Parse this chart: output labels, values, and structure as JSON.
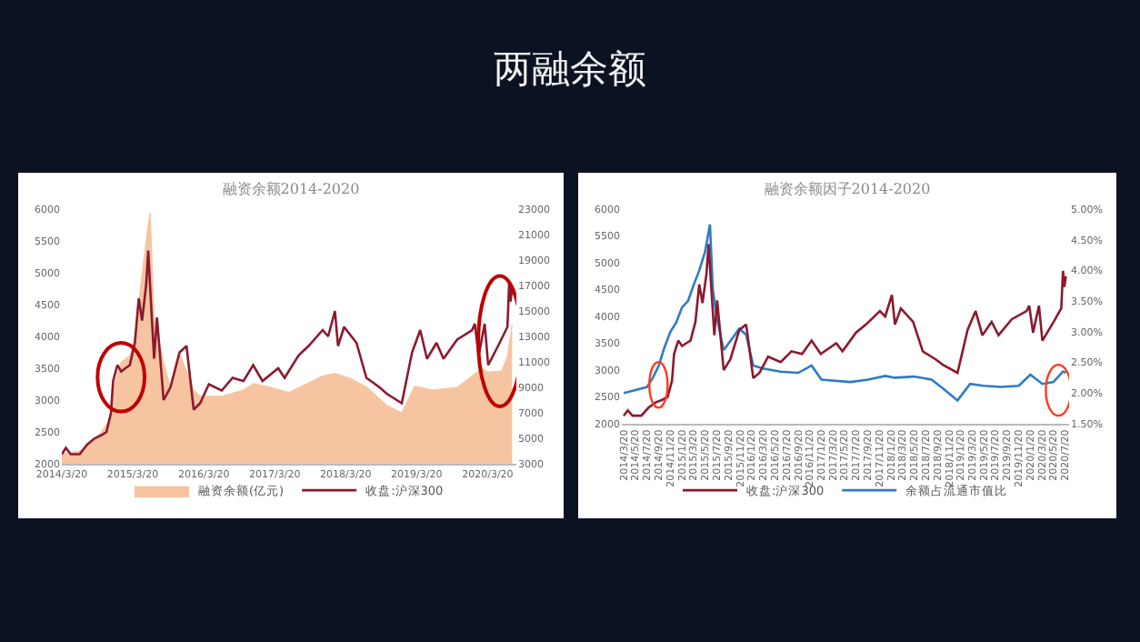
{
  "chart_data": [
    {
      "type": "other",
      "title": "两融余额"
    },
    {
      "type": "line",
      "title": "融资余额2014-2020",
      "xlim": [
        "2014-03-20",
        "2020-08-15"
      ],
      "xticks": [
        {
          "value": "2014-03-20",
          "label": "2014/3/20"
        },
        {
          "value": "2015-03-20",
          "label": "2015/3/20"
        },
        {
          "value": "2016-03-20",
          "label": "2016/3/20"
        },
        {
          "value": "2017-03-20",
          "label": "2017/3/20"
        },
        {
          "value": "2018-03-20",
          "label": "2018/3/20"
        },
        {
          "value": "2019-03-20",
          "label": "2019/3/20"
        },
        {
          "value": "2020-03-20",
          "label": "2020/3/20"
        }
      ],
      "ylim": [
        2000,
        6000
      ],
      "yticks": [
        2000,
        2500,
        3000,
        3500,
        4000,
        4500,
        5000,
        5500,
        6000
      ],
      "y2lim": [
        3000,
        23000
      ],
      "y2ticks": [
        3000,
        5000,
        7000,
        9000,
        11000,
        13000,
        15000,
        17000,
        19000,
        21000,
        23000
      ],
      "legend": "bottom",
      "series": [
        {
          "name": "融资余额(亿元)",
          "type": "area",
          "axis": "y2",
          "color": "#f6c4a0",
          "x": [
            "2014-03-20",
            "2014-06-20",
            "2014-08-15",
            "2014-10-10",
            "2014-11-20",
            "2014-12-20",
            "2015-01-20",
            "2015-03-05",
            "2015-04-01",
            "2015-04-30",
            "2015-06-05",
            "2015-06-18",
            "2015-07-08",
            "2015-08-26",
            "2015-09-30",
            "2015-11-16",
            "2016-01-28",
            "2016-03-01",
            "2016-06-20",
            "2016-10-10",
            "2016-12-01",
            "2017-03-01",
            "2017-06-01",
            "2017-09-01",
            "2017-11-22",
            "2018-01-24",
            "2018-04-16",
            "2018-07-10",
            "2018-10-18",
            "2019-01-03",
            "2019-03-10",
            "2019-06-10",
            "2019-10-15",
            "2019-12-31",
            "2020-02-21",
            "2020-03-23",
            "2020-06-01",
            "2020-07-01",
            "2020-07-24"
          ],
          "values": [
            3800,
            4000,
            4600,
            5500,
            6500,
            9500,
            11000,
            11500,
            13000,
            17000,
            21500,
            22700,
            14500,
            11000,
            9000,
            11700,
            8800,
            8300,
            8300,
            8800,
            9300,
            9000,
            8600,
            9300,
            9900,
            10100,
            9700,
            9000,
            7600,
            7000,
            9100,
            8800,
            9000,
            9900,
            10500,
            10200,
            10300,
            11500,
            14000
          ]
        },
        {
          "name": "收盘:沪深300",
          "type": "line",
          "color": "#8b1a2e",
          "x": [
            "2014-03-20",
            "2014-04-10",
            "2014-05-05",
            "2014-06-20",
            "2014-07-28",
            "2014-09-05",
            "2014-10-10",
            "2014-11-05",
            "2014-11-28",
            "2014-12-09",
            "2014-12-31",
            "2015-01-20",
            "2015-02-10",
            "2015-03-05",
            "2015-03-31",
            "2015-04-20",
            "2015-05-07",
            "2015-05-28",
            "2015-06-08",
            "2015-06-19",
            "2015-07-08",
            "2015-07-23",
            "2015-08-26",
            "2015-09-30",
            "2015-11-16",
            "2015-12-22",
            "2016-01-28",
            "2016-03-01",
            "2016-04-15",
            "2016-06-20",
            "2016-08-15",
            "2016-10-10",
            "2016-11-29",
            "2017-01-16",
            "2017-04-07",
            "2017-05-10",
            "2017-07-20",
            "2017-09-10",
            "2017-11-22",
            "2017-12-20",
            "2018-01-24",
            "2018-02-09",
            "2018-03-12",
            "2018-05-15",
            "2018-07-05",
            "2018-09-11",
            "2018-10-18",
            "2019-01-03",
            "2019-02-25",
            "2019-04-08",
            "2019-05-13",
            "2019-07-01",
            "2019-08-06",
            "2019-10-15",
            "2019-12-31",
            "2020-01-14",
            "2020-02-03",
            "2020-03-05",
            "2020-03-23",
            "2020-05-21",
            "2020-06-30",
            "2020-07-09",
            "2020-07-16",
            "2020-07-24"
          ],
          "values": [
            2150,
            2250,
            2150,
            2150,
            2300,
            2400,
            2450,
            2500,
            2800,
            3300,
            3550,
            3450,
            3500,
            3550,
            3900,
            4600,
            4250,
            4800,
            5350,
            4700,
            3650,
            4300,
            3000,
            3200,
            3750,
            3850,
            2850,
            2950,
            3250,
            3150,
            3350,
            3300,
            3550,
            3300,
            3500,
            3350,
            3700,
            3850,
            4100,
            4000,
            4400,
            3850,
            4150,
            3900,
            3350,
            3200,
            3100,
            2950,
            3750,
            4100,
            3650,
            3900,
            3650,
            3950,
            4100,
            4200,
            3700,
            4200,
            3550,
            3900,
            4150,
            4850,
            4550,
            4750
          ]
        }
      ]
    },
    {
      "type": "line",
      "title": "融资余额因子2014-2020",
      "xlim": [
        "2014-03-10",
        "2020-08-10"
      ],
      "xticks": [
        {
          "value": "2014-03-20",
          "label": "2014/3/20"
        },
        {
          "value": "2014-05-20",
          "label": "2014/5/20"
        },
        {
          "value": "2014-07-20",
          "label": "2014/7/20"
        },
        {
          "value": "2014-09-20",
          "label": "2014/9/20"
        },
        {
          "value": "2014-11-20",
          "label": "2014/11/20"
        },
        {
          "value": "2015-01-20",
          "label": "2015/1/20"
        },
        {
          "value": "2015-03-20",
          "label": "2015/3/20"
        },
        {
          "value": "2015-05-20",
          "label": "2015/5/20"
        },
        {
          "value": "2015-07-20",
          "label": "2015/7/20"
        },
        {
          "value": "2015-09-20",
          "label": "2015/9/20"
        },
        {
          "value": "2015-11-20",
          "label": "2015/11/20"
        },
        {
          "value": "2016-01-20",
          "label": "2016/1/20"
        },
        {
          "value": "2016-03-20",
          "label": "2016/3/20"
        },
        {
          "value": "2016-05-20",
          "label": "2016/5/20"
        },
        {
          "value": "2016-07-20",
          "label": "2016/7/20"
        },
        {
          "value": "2016-09-20",
          "label": "2016/9/20"
        },
        {
          "value": "2016-11-20",
          "label": "2016/11/20"
        },
        {
          "value": "2017-01-20",
          "label": "2017/1/20"
        },
        {
          "value": "2017-03-20",
          "label": "2017/3/20"
        },
        {
          "value": "2017-05-20",
          "label": "2017/5/20"
        },
        {
          "value": "2017-07-20",
          "label": "2017/7/20"
        },
        {
          "value": "2017-09-20",
          "label": "2017/9/20"
        },
        {
          "value": "2017-11-20",
          "label": "2017/11/20"
        },
        {
          "value": "2018-01-20",
          "label": "2018/1/20"
        },
        {
          "value": "2018-03-20",
          "label": "2018/3/20"
        },
        {
          "value": "2018-05-20",
          "label": "2018/5/20"
        },
        {
          "value": "2018-07-20",
          "label": "2018/7/20"
        },
        {
          "value": "2018-09-20",
          "label": "2018/9/20"
        },
        {
          "value": "2018-11-20",
          "label": "2018/11/20"
        },
        {
          "value": "2019-01-20",
          "label": "2019/1/20"
        },
        {
          "value": "2019-03-20",
          "label": "2019/3/20"
        },
        {
          "value": "2019-05-20",
          "label": "2019/5/20"
        },
        {
          "value": "2019-07-20",
          "label": "2019/7/20"
        },
        {
          "value": "2019-09-20",
          "label": "2019/9/20"
        },
        {
          "value": "2019-11-20",
          "label": "2019/11/20"
        },
        {
          "value": "2020-01-20",
          "label": "2020/1/20"
        },
        {
          "value": "2020-03-20",
          "label": "2020/3/20"
        },
        {
          "value": "2020-05-20",
          "label": "2020/5/20"
        },
        {
          "value": "2020-07-20",
          "label": "2020/7/20"
        }
      ],
      "ylim": [
        2000,
        6000
      ],
      "yticks": [
        2000,
        2500,
        3000,
        3500,
        4000,
        4500,
        5000,
        5500,
        6000
      ],
      "y2lim": [
        1.5,
        5
      ],
      "y2ticks": [
        {
          "value": 1.5,
          "label": "1.50%"
        },
        {
          "value": 2,
          "label": "2.00%"
        },
        {
          "value": 2.5,
          "label": "2.50%"
        },
        {
          "value": 3,
          "label": "3.00%"
        },
        {
          "value": 3.5,
          "label": "3.50%"
        },
        {
          "value": 4,
          "label": "4.00%"
        },
        {
          "value": 4.5,
          "label": "4.50%"
        },
        {
          "value": 5,
          "label": "5.00%"
        }
      ],
      "legend": "bottom",
      "series": [
        {
          "name": "收盘:沪深300",
          "type": "line",
          "color": "#8b1a2e",
          "x": [
            "2014-03-20",
            "2014-04-10",
            "2014-05-05",
            "2014-06-20",
            "2014-07-28",
            "2014-09-05",
            "2014-10-10",
            "2014-11-05",
            "2014-11-28",
            "2014-12-09",
            "2014-12-31",
            "2015-01-20",
            "2015-02-10",
            "2015-03-05",
            "2015-03-31",
            "2015-04-20",
            "2015-05-07",
            "2015-05-28",
            "2015-06-08",
            "2015-06-19",
            "2015-07-08",
            "2015-07-23",
            "2015-08-26",
            "2015-09-30",
            "2015-11-16",
            "2015-12-22",
            "2016-01-28",
            "2016-03-01",
            "2016-04-15",
            "2016-06-20",
            "2016-08-15",
            "2016-10-10",
            "2016-11-29",
            "2017-01-16",
            "2017-04-07",
            "2017-05-10",
            "2017-07-20",
            "2017-09-10",
            "2017-11-22",
            "2017-12-20",
            "2018-01-24",
            "2018-02-09",
            "2018-03-12",
            "2018-05-15",
            "2018-07-05",
            "2018-09-11",
            "2018-10-18",
            "2019-01-03",
            "2019-02-25",
            "2019-04-08",
            "2019-05-13",
            "2019-07-01",
            "2019-08-06",
            "2019-10-15",
            "2019-12-31",
            "2020-01-14",
            "2020-02-03",
            "2020-03-05",
            "2020-03-23",
            "2020-05-21",
            "2020-06-30",
            "2020-07-09",
            "2020-07-16",
            "2020-07-24"
          ],
          "values": [
            2150,
            2250,
            2150,
            2150,
            2300,
            2400,
            2450,
            2500,
            2800,
            3300,
            3550,
            3450,
            3500,
            3550,
            3900,
            4600,
            4250,
            4800,
            5350,
            4700,
            3650,
            4300,
            3000,
            3200,
            3750,
            3850,
            2850,
            2950,
            3250,
            3150,
            3350,
            3300,
            3550,
            3300,
            3500,
            3350,
            3700,
            3850,
            4100,
            4000,
            4400,
            3850,
            4150,
            3900,
            3350,
            3200,
            3100,
            2950,
            3750,
            4100,
            3650,
            3900,
            3650,
            3950,
            4100,
            4200,
            3700,
            4200,
            3550,
            3900,
            4150,
            4850,
            4550,
            4750
          ]
        },
        {
          "name": "余额占流通市值比",
          "type": "line",
          "axis": "y2",
          "color": "#2e7cc4",
          "x": [
            "2014-03-20",
            "2014-05-20",
            "2014-07-20",
            "2014-08-20",
            "2014-09-20",
            "2014-10-20",
            "2014-11-20",
            "2014-12-20",
            "2015-01-20",
            "2015-02-20",
            "2015-03-20",
            "2015-04-20",
            "2015-05-20",
            "2015-06-15",
            "2015-06-30",
            "2015-07-20",
            "2015-08-26",
            "2015-09-30",
            "2015-11-16",
            "2015-12-22",
            "2016-01-28",
            "2016-03-20",
            "2016-06-20",
            "2016-09-20",
            "2016-11-29",
            "2017-01-20",
            "2017-06-20",
            "2017-09-20",
            "2017-12-20",
            "2018-02-09",
            "2018-05-20",
            "2018-08-20",
            "2018-10-18",
            "2019-01-03",
            "2019-03-10",
            "2019-05-20",
            "2019-08-20",
            "2019-11-20",
            "2020-01-20",
            "2020-03-23",
            "2020-05-20",
            "2020-07-09",
            "2020-07-24"
          ],
          "values": [
            2.0,
            2.05,
            2.1,
            2.25,
            2.45,
            2.75,
            3.0,
            3.15,
            3.4,
            3.5,
            3.75,
            4.0,
            4.3,
            4.75,
            3.7,
            3.25,
            2.7,
            2.85,
            3.05,
            2.95,
            2.45,
            2.4,
            2.35,
            2.33,
            2.45,
            2.22,
            2.18,
            2.22,
            2.28,
            2.25,
            2.27,
            2.22,
            2.08,
            1.88,
            2.15,
            2.12,
            2.1,
            2.12,
            2.3,
            2.15,
            2.18,
            2.35,
            2.33
          ]
        }
      ]
    }
  ]
}
